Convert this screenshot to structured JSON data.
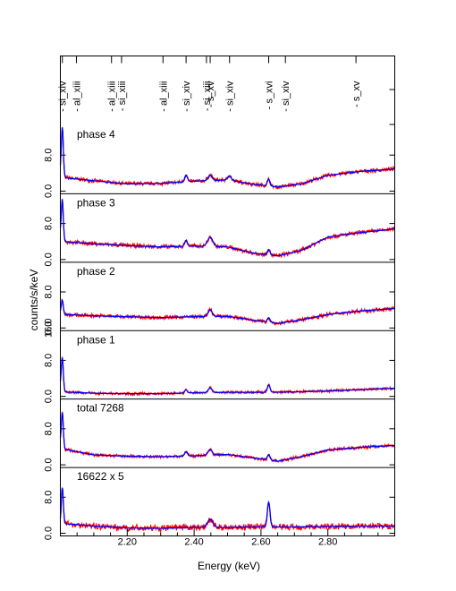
{
  "chart_data": {
    "type": "line",
    "xlabel": "Energy (keV)",
    "ylabel": "counts/s/keV",
    "xlim": [
      2.0,
      3.0
    ],
    "x_ticks": [
      2.2,
      2.4,
      2.6,
      2.8
    ],
    "x_tick_labels": [
      "2.20",
      "2.40",
      "2.60",
      "2.80"
    ],
    "y_tick_labels": [
      "0.0",
      "8.0"
    ],
    "extra_tick_label": "16.0",
    "line_ids": [
      {
        "label": "si_xiv",
        "energy": 2.006
      },
      {
        "label": "al_xiii",
        "energy": 2.048
      },
      {
        "label": "al_xiii",
        "energy": 2.153
      },
      {
        "label": "si_xiii",
        "energy": 2.183
      },
      {
        "label": "al_xiii",
        "energy": 2.307
      },
      {
        "label": "si_xiv",
        "energy": 2.376
      },
      {
        "label": "si_xiii",
        "energy": 2.437
      },
      {
        "label": "s_xv",
        "energy": 2.448
      },
      {
        "label": "si_xiv",
        "energy": 2.506
      },
      {
        "label": "s_xvi",
        "energy": 2.623
      },
      {
        "label": "si_xiv",
        "energy": 2.673
      },
      {
        "label": "s_xv",
        "energy": 2.884
      }
    ],
    "series_colors": {
      "data": "#ff0000",
      "model": "#0000ff"
    },
    "panels": [
      {
        "label": "phase 4",
        "ylim": [
          0,
          14
        ],
        "anchors": [
          [
            2.0,
            4.5
          ],
          [
            2.01,
            3.0
          ],
          [
            2.1,
            2.3
          ],
          [
            2.2,
            1.6
          ],
          [
            2.3,
            1.7
          ],
          [
            2.4,
            2.2
          ],
          [
            2.5,
            2.5
          ],
          [
            2.58,
            1.5
          ],
          [
            2.65,
            0.9
          ],
          [
            2.72,
            1.6
          ],
          [
            2.8,
            3.5
          ],
          [
            2.9,
            4.4
          ],
          [
            3.0,
            4.9
          ]
        ],
        "spikes": [
          [
            2.006,
            10.5,
            0.003
          ],
          [
            2.376,
            1.5,
            0.004
          ],
          [
            2.448,
            1.2,
            0.006
          ],
          [
            2.506,
            1.0,
            0.005
          ],
          [
            2.623,
            1.5,
            0.004
          ]
        ],
        "noise": 0.5
      },
      {
        "label": "phase 3",
        "ylim": [
          0,
          14
        ],
        "anchors": [
          [
            2.0,
            6.0
          ],
          [
            2.01,
            4.0
          ],
          [
            2.1,
            3.5
          ],
          [
            2.2,
            3.1
          ],
          [
            2.3,
            2.8
          ],
          [
            2.4,
            3.0
          ],
          [
            2.5,
            2.8
          ],
          [
            2.58,
            1.4
          ],
          [
            2.65,
            0.8
          ],
          [
            2.72,
            2.0
          ],
          [
            2.8,
            5.0
          ],
          [
            2.9,
            6.0
          ],
          [
            3.0,
            6.8
          ]
        ],
        "spikes": [
          [
            2.006,
            8.5,
            0.003
          ],
          [
            2.376,
            1.3,
            0.004
          ],
          [
            2.448,
            2.0,
            0.008
          ],
          [
            2.623,
            1.2,
            0.004
          ]
        ],
        "noise": 0.55
      },
      {
        "label": "phase 2",
        "ylim": [
          0,
          14
        ],
        "anchors": [
          [
            2.0,
            3.5
          ],
          [
            2.01,
            3.0
          ],
          [
            2.1,
            2.7
          ],
          [
            2.2,
            2.5
          ],
          [
            2.3,
            2.3
          ],
          [
            2.4,
            2.5
          ],
          [
            2.5,
            2.6
          ],
          [
            2.58,
            1.7
          ],
          [
            2.65,
            1.0
          ],
          [
            2.72,
            1.8
          ],
          [
            2.8,
            3.0
          ],
          [
            2.9,
            3.8
          ],
          [
            3.0,
            4.3
          ]
        ],
        "spikes": [
          [
            2.006,
            3.0,
            0.003
          ],
          [
            2.448,
            1.5,
            0.006
          ],
          [
            2.623,
            1.0,
            0.004
          ]
        ],
        "noise": 0.5
      },
      {
        "label": "phase 1",
        "ylim": [
          0,
          14
        ],
        "anchors": [
          [
            2.0,
            2.5
          ],
          [
            2.01,
            1.0
          ],
          [
            2.1,
            0.7
          ],
          [
            2.2,
            0.6
          ],
          [
            2.3,
            0.6
          ],
          [
            2.4,
            0.8
          ],
          [
            2.5,
            0.9
          ],
          [
            2.6,
            0.9
          ],
          [
            2.7,
            1.0
          ],
          [
            2.8,
            1.2
          ],
          [
            2.9,
            1.5
          ],
          [
            3.0,
            1.8
          ]
        ],
        "spikes": [
          [
            2.006,
            7.0,
            0.003
          ],
          [
            2.376,
            0.7,
            0.004
          ],
          [
            2.448,
            1.0,
            0.006
          ],
          [
            2.623,
            1.6,
            0.004
          ]
        ],
        "noise": 0.35
      },
      {
        "label": "total 7268",
        "ylim": [
          0,
          14
        ],
        "anchors": [
          [
            2.0,
            5.0
          ],
          [
            2.01,
            3.5
          ],
          [
            2.1,
            2.2
          ],
          [
            2.2,
            1.9
          ],
          [
            2.3,
            1.8
          ],
          [
            2.4,
            2.0
          ],
          [
            2.5,
            2.3
          ],
          [
            2.58,
            1.5
          ],
          [
            2.65,
            0.8
          ],
          [
            2.72,
            1.8
          ],
          [
            2.8,
            3.3
          ],
          [
            2.9,
            3.9
          ],
          [
            3.0,
            4.3
          ]
        ],
        "spikes": [
          [
            2.006,
            7.5,
            0.003
          ],
          [
            2.376,
            1.0,
            0.004
          ],
          [
            2.448,
            1.3,
            0.006
          ],
          [
            2.623,
            1.2,
            0.004
          ]
        ],
        "noise": 0.4
      },
      {
        "label": "16622 x 5",
        "ylim": [
          0,
          14
        ],
        "anchors": [
          [
            2.0,
            2.2
          ],
          [
            2.1,
            1.6
          ],
          [
            2.2,
            1.2
          ],
          [
            2.3,
            1.1
          ],
          [
            2.4,
            1.3
          ],
          [
            2.5,
            1.3
          ],
          [
            2.6,
            1.4
          ],
          [
            2.7,
            1.4
          ],
          [
            2.8,
            1.5
          ],
          [
            2.9,
            1.6
          ],
          [
            3.0,
            1.6
          ]
        ],
        "spikes": [
          [
            2.006,
            8.0,
            0.003
          ],
          [
            2.448,
            1.8,
            0.008
          ],
          [
            2.623,
            5.5,
            0.004
          ]
        ],
        "noise": 0.8
      }
    ]
  }
}
